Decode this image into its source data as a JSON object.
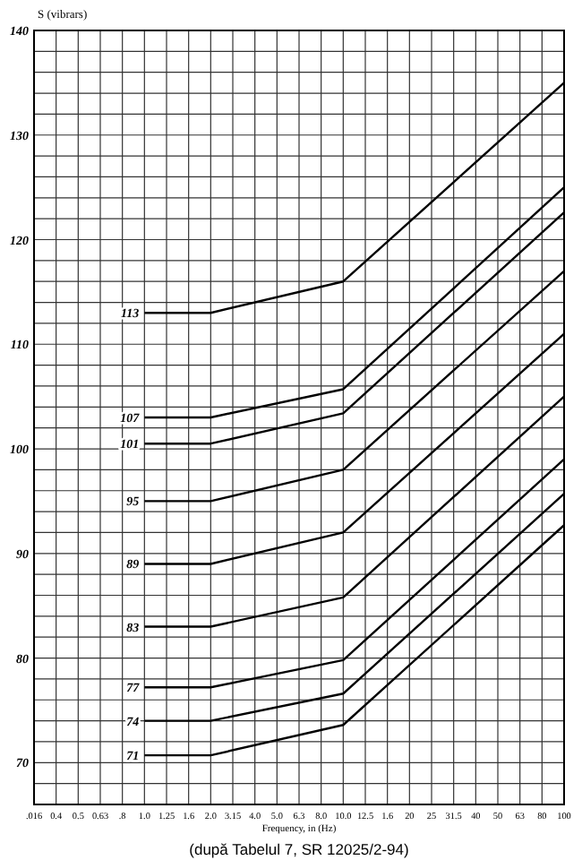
{
  "chart_data": {
    "type": "line",
    "ylabel": "S (vibrars)",
    "xlabel": "Frequency, in (Hz)",
    "categories": [
      ".016",
      "0.4",
      "0.5",
      "0.63",
      ".8",
      "1.0",
      "1.25",
      "1.6",
      "2.0",
      "3.15",
      "4.0",
      "5.0",
      "6.3",
      "8.0",
      "10.0",
      "12.5",
      "1.6",
      "20",
      "25",
      "31.5",
      "40",
      "50",
      "63",
      "80",
      "100"
    ],
    "ylim": [
      66,
      140
    ],
    "yticks": [
      {
        "value": 66,
        "label": null
      },
      {
        "value": 68,
        "label": null
      },
      70,
      {
        "value": 72,
        "label": null
      },
      {
        "value": 74,
        "label": null
      },
      {
        "value": 76,
        "label": null
      },
      {
        "value": 78,
        "label": null
      },
      80,
      {
        "value": 82,
        "label": null
      },
      {
        "value": 84,
        "label": null
      },
      {
        "value": 86,
        "label": null
      },
      {
        "value": 88,
        "label": null
      },
      90,
      {
        "value": 92,
        "label": null
      },
      {
        "value": 94,
        "label": null
      },
      {
        "value": 96,
        "label": null
      },
      {
        "value": 98,
        "label": null
      },
      100,
      {
        "value": 102,
        "label": null
      },
      {
        "value": 104,
        "label": null
      },
      {
        "value": 106,
        "label": null
      },
      {
        "value": 108,
        "label": null
      },
      110,
      {
        "value": 112,
        "label": null
      },
      {
        "value": 114,
        "label": null
      },
      {
        "value": 116,
        "label": null
      },
      {
        "value": 118,
        "label": null
      },
      120,
      {
        "value": 122,
        "label": null
      },
      {
        "value": 124,
        "label": null
      },
      {
        "value": 126,
        "label": null
      },
      {
        "value": 128,
        "label": null
      },
      130,
      {
        "value": 132,
        "label": null
      },
      {
        "value": 134,
        "label": null
      },
      {
        "value": 136,
        "label": null
      },
      {
        "value": 138,
        "label": null
      },
      140
    ],
    "grid": true,
    "marker": "none",
    "line_style": "solid",
    "series": [
      {
        "name": "113",
        "color": "#000000",
        "x": [
          "1.0",
          "2.0",
          "10.0",
          "100"
        ],
        "values": [
          113,
          113,
          116,
          135
        ]
      },
      {
        "name": "107",
        "color": "#000000",
        "x": [
          "1.0",
          "2.0",
          "10.0",
          "100"
        ],
        "values": [
          103,
          103,
          105.7,
          125
        ]
      },
      {
        "name": "101",
        "color": "#000000",
        "x": [
          "1.0",
          "2.0",
          "10.0",
          "100"
        ],
        "values": [
          100.5,
          100.5,
          103.4,
          122.6
        ]
      },
      {
        "name": "95",
        "color": "#000000",
        "x": [
          "1.0",
          "2.0",
          "10.0",
          "100"
        ],
        "values": [
          95,
          95,
          98,
          117
        ]
      },
      {
        "name": "89",
        "color": "#000000",
        "x": [
          "1.0",
          "2.0",
          "10.0",
          "100"
        ],
        "values": [
          89,
          89,
          92,
          111
        ]
      },
      {
        "name": "83",
        "color": "#000000",
        "x": [
          "1.0",
          "2.0",
          "10.0",
          "100"
        ],
        "values": [
          83,
          83,
          85.8,
          105
        ]
      },
      {
        "name": "77",
        "color": "#000000",
        "x": [
          "1.0",
          "2.0",
          "10.0",
          "100"
        ],
        "values": [
          77.2,
          77.2,
          79.8,
          99
        ]
      },
      {
        "name": "74",
        "color": "#000000",
        "x": [
          "1.0",
          "2.0",
          "10.0",
          "100"
        ],
        "values": [
          74,
          74,
          76.6,
          95.7
        ]
      },
      {
        "name": "71",
        "color": "#000000",
        "x": [
          "1.0",
          "2.0",
          "10.0",
          "100"
        ],
        "values": [
          70.7,
          70.7,
          73.6,
          92.7
        ]
      }
    ],
    "annotations": [
      "(după Tabelul 7, SR 12025/2-94)"
    ]
  }
}
